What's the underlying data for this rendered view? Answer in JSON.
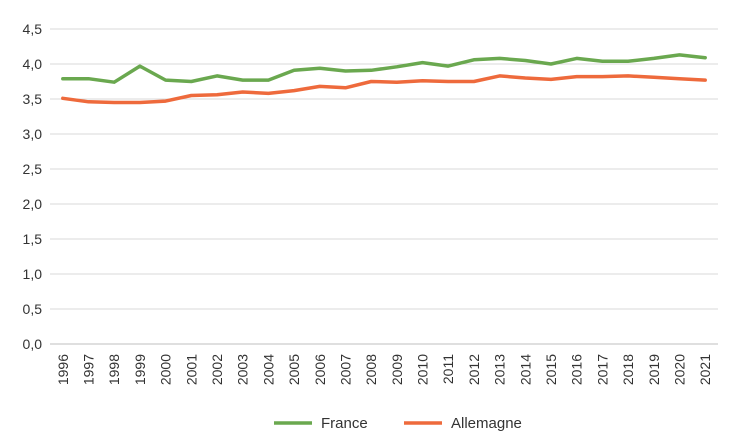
{
  "chart_data": {
    "type": "line",
    "x": [
      "1996",
      "1997",
      "1998",
      "1999",
      "2000",
      "2001",
      "2002",
      "2003",
      "2004",
      "2005",
      "2006",
      "2007",
      "2008",
      "2009",
      "2010",
      "2011",
      "2012",
      "2013",
      "2014",
      "2015",
      "2016",
      "2017",
      "2018",
      "2019",
      "2020",
      "2021"
    ],
    "ylim": [
      0,
      4.5
    ],
    "yticks": [
      "0,0",
      "0,5",
      "1,0",
      "1,5",
      "2,0",
      "2,5",
      "3,0",
      "3,5",
      "4,0",
      "4,5"
    ],
    "grid": "horizontal",
    "legend": "bottom-center",
    "series": [
      {
        "name": "France",
        "color": "#6aa84f",
        "values": [
          3.79,
          3.79,
          3.74,
          3.97,
          3.77,
          3.75,
          3.83,
          3.77,
          3.77,
          3.91,
          3.94,
          3.9,
          3.91,
          3.96,
          4.02,
          3.97,
          4.06,
          4.08,
          4.05,
          4.0,
          4.08,
          4.04,
          4.04,
          4.08,
          4.13,
          4.09
        ]
      },
      {
        "name": "Allemagne",
        "color": "#ee6a3c",
        "values": [
          3.51,
          3.46,
          3.45,
          3.45,
          3.47,
          3.55,
          3.56,
          3.6,
          3.58,
          3.62,
          3.68,
          3.66,
          3.75,
          3.74,
          3.76,
          3.75,
          3.75,
          3.83,
          3.8,
          3.78,
          3.82,
          3.82,
          3.83,
          3.81,
          3.79,
          3.77
        ]
      }
    ]
  }
}
